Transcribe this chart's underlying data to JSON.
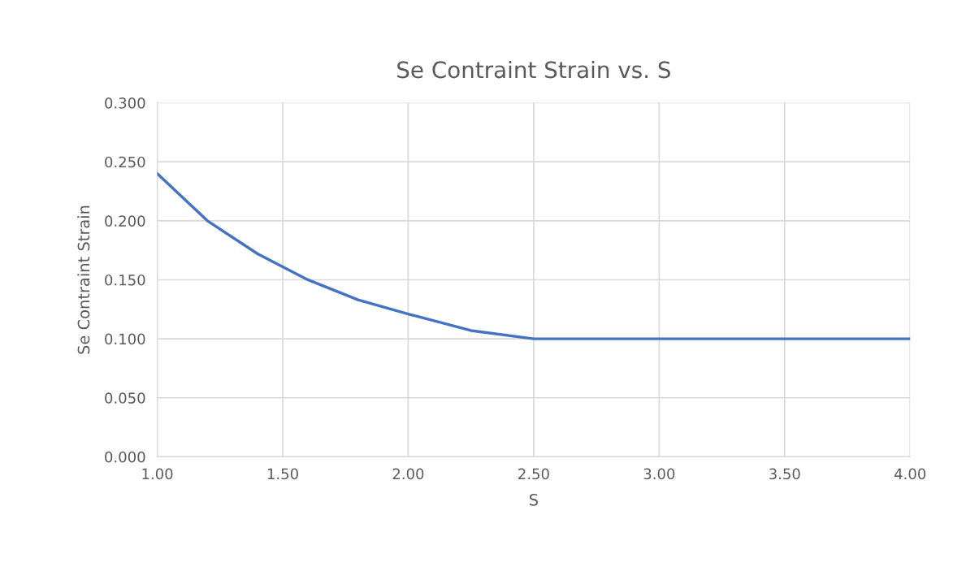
{
  "chart_data": {
    "type": "line",
    "title": "Se Contraint Strain vs. S",
    "xlabel": "S",
    "ylabel": "Se Contraint Strain",
    "series": [
      {
        "color": "#4472c4",
        "x": [
          1.0,
          1.2,
          1.4,
          1.6,
          1.8,
          2.0,
          2.25,
          2.5,
          2.75,
          3.0,
          3.5,
          4.0
        ],
        "values": [
          0.24,
          0.2,
          0.172,
          0.15,
          0.133,
          0.121,
          0.107,
          0.1,
          0.1,
          0.1,
          0.1,
          0.1
        ]
      }
    ],
    "xlim": [
      1.0,
      4.0
    ],
    "xticks": [
      {
        "value": 1.0,
        "label": "1.00"
      },
      {
        "value": 1.5,
        "label": "1.50"
      },
      {
        "value": 2.0,
        "label": "2.00"
      },
      {
        "value": 2.5,
        "label": "2.50"
      },
      {
        "value": 3.0,
        "label": "3.00"
      },
      {
        "value": 3.5,
        "label": "3.50"
      },
      {
        "value": 4.0,
        "label": "4.00"
      }
    ],
    "ylim": [
      0,
      0.3
    ],
    "yticks": [
      {
        "value": 0,
        "label": "0.000"
      },
      {
        "value": 0.05,
        "label": "0.050"
      },
      {
        "value": 0.1,
        "label": "0.100"
      },
      {
        "value": 0.15,
        "label": "0.150"
      },
      {
        "value": 0.2,
        "label": "0.200"
      },
      {
        "value": 0.25,
        "label": "0.250"
      },
      {
        "value": 0.3,
        "label": "0.300"
      }
    ],
    "grid": true,
    "marker": "none",
    "line_style": "solid"
  }
}
